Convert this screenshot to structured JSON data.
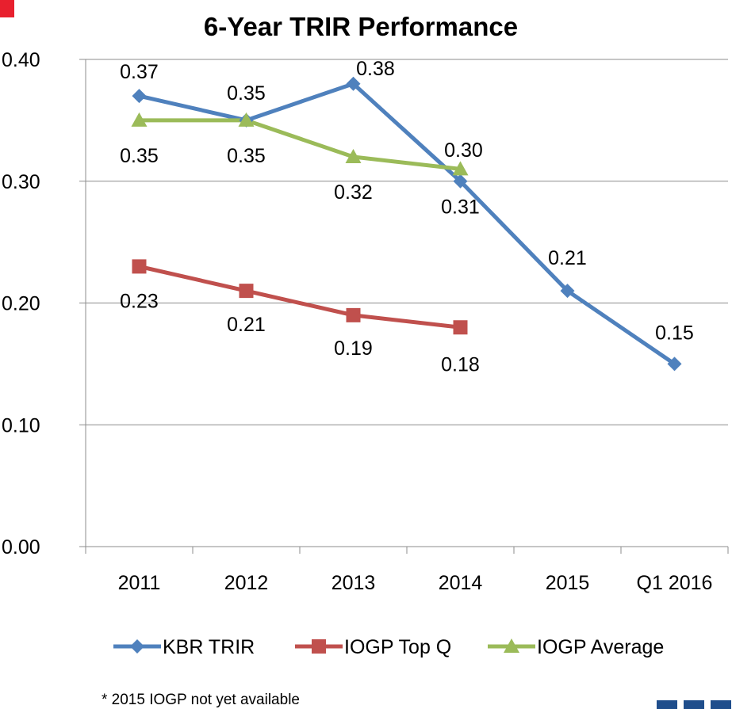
{
  "chart_data": {
    "type": "line",
    "title": "6-Year TRIR Performance",
    "xlabel": "",
    "ylabel": "",
    "categories": [
      "2011",
      "2012",
      "2013",
      "2014",
      "2015",
      "Q1 2016"
    ],
    "ylim": [
      0,
      0.4
    ],
    "yticks": [
      "0.00",
      "0.10",
      "0.20",
      "0.30",
      "0.40"
    ],
    "grid": true,
    "legend": "bottom",
    "series": [
      {
        "name": "KBR TRIR",
        "color": "#4f81bd",
        "marker": "diamond",
        "values": [
          0.37,
          0.35,
          0.38,
          0.3,
          0.21,
          0.15
        ],
        "labels": [
          "0.37",
          "0.35",
          "0.38",
          "0.30",
          "0.21",
          "0.15"
        ]
      },
      {
        "name": "IOGP Top Q",
        "color": "#c0504d",
        "marker": "square",
        "values": [
          0.23,
          0.21,
          0.19,
          0.18,
          null,
          null
        ],
        "labels": [
          "0.23",
          "0.21",
          "0.19",
          "0.18",
          null,
          null
        ]
      },
      {
        "name": "IOGP Average",
        "color": "#9bbb59",
        "marker": "triangle",
        "values": [
          0.35,
          0.35,
          0.32,
          0.31,
          null,
          null
        ],
        "labels": [
          "0.35",
          "0.35",
          "0.32",
          "0.31",
          null,
          null
        ]
      }
    ]
  },
  "footnote": "* 2015 IOGP not yet available"
}
